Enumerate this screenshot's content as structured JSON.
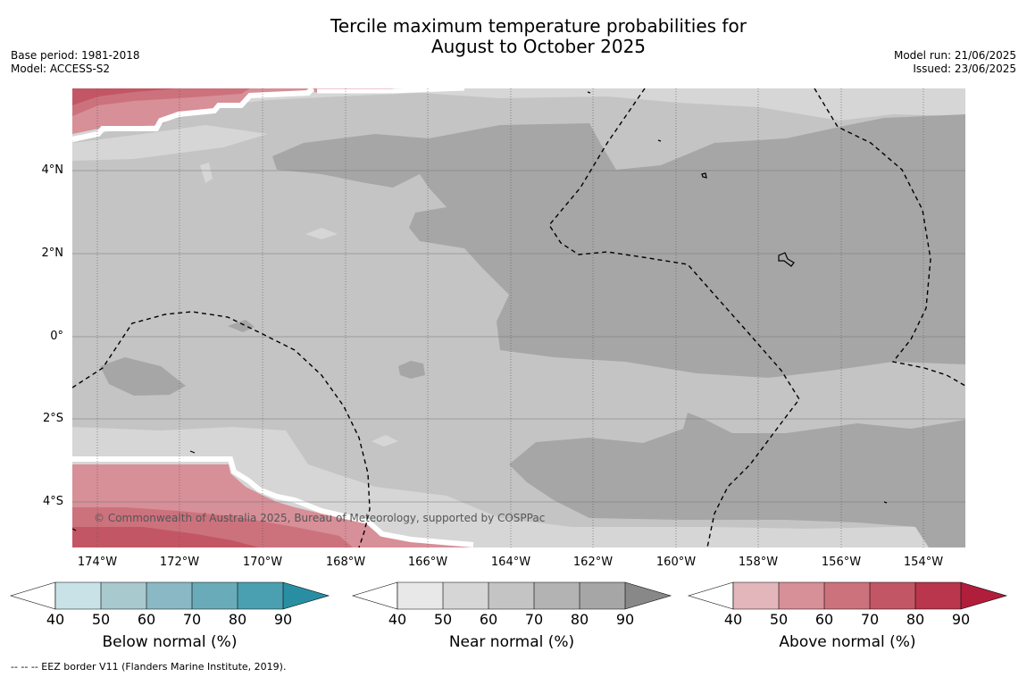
{
  "title": {
    "line1": "Tercile maximum temperature probabilities for",
    "line2": "August to October 2025"
  },
  "meta_left": {
    "base_period": "Base period: 1981-2018",
    "model": "Model: ACCESS-S2"
  },
  "meta_right": {
    "model_run": "Model run: 21/06/2025",
    "issued": "Issued: 23/06/2025"
  },
  "map": {
    "copyright": "© Commonwealth of Australia 2025, Bureau of Meteorology, supported by COSPPac",
    "lat_labels": [
      "4°N",
      "2°N",
      "0°",
      "2°S",
      "4°S"
    ],
    "lon_labels": [
      "174°W",
      "172°W",
      "170°W",
      "168°W",
      "166°W",
      "164°W",
      "162°W",
      "160°W",
      "158°W",
      "156°W",
      "154°W"
    ],
    "colors": {
      "ocean_near_50": "#d6d6d6",
      "near_60": "#c4c4c4",
      "near_80": "#a6a6a6",
      "above_50": "#d78f98",
      "above_60": "#cc727d",
      "above_70": "#c35664"
    }
  },
  "colorbars": [
    {
      "title": "Below normal (%)",
      "ticks": [
        "40",
        "50",
        "60",
        "70",
        "80",
        "90"
      ],
      "colors": [
        "#c9e2e8",
        "#a8c9ce",
        "#8ab8c4",
        "#6aabb9",
        "#4aa0b0",
        "#2a8ea3"
      ]
    },
    {
      "title": "Near normal (%)",
      "ticks": [
        "40",
        "50",
        "60",
        "70",
        "80",
        "90"
      ],
      "colors": [
        "#e8e8e8",
        "#d6d6d6",
        "#c4c4c4",
        "#b3b3b3",
        "#a6a6a6",
        "#888888"
      ]
    },
    {
      "title": "Above normal (%)",
      "ticks": [
        "40",
        "50",
        "60",
        "70",
        "80",
        "90"
      ],
      "colors": [
        "#e2b6bb",
        "#d78f98",
        "#cc727d",
        "#c35664",
        "#b9364c",
        "#b01e3c"
      ]
    }
  ],
  "footnote": "--  --  -- EEZ border V11 (Flanders Marine Institute, 2019)."
}
